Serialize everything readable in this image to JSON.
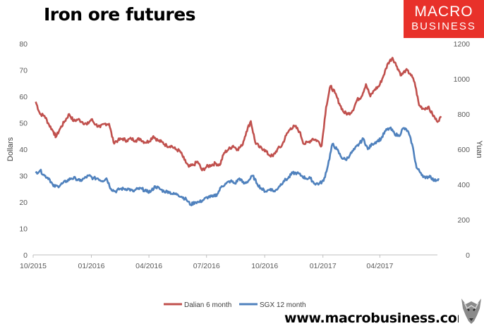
{
  "title": "Iron ore futures",
  "logo": {
    "line1": "MACRO",
    "line2": "BUSINESS"
  },
  "footer_url": "www.macrobusiness.com.au",
  "colors": {
    "dalian": "#c0504d",
    "sgx": "#4f81bd",
    "logo_bg": "#e8312a"
  },
  "chart_data": {
    "type": "line",
    "x_type": "date",
    "x_tick_labels": [
      "10/2015",
      "01/2016",
      "04/2016",
      "07/2016",
      "10/2016",
      "01/2017",
      "04/2017"
    ],
    "x_ticks": [
      "2015-10-01",
      "2016-01-01",
      "2016-04-01",
      "2016-07-01",
      "2016-10-01",
      "2017-01-01",
      "2017-04-01"
    ],
    "xlim": [
      "2015-10-01",
      "2017-07-01"
    ],
    "y_left": {
      "label": "Dollars",
      "ylim": [
        0,
        80
      ],
      "ticks": [
        0,
        10,
        20,
        30,
        40,
        50,
        60,
        70,
        80
      ]
    },
    "y_right": {
      "label": "Yuan",
      "ylim": [
        0,
        1200
      ],
      "ticks": [
        0,
        200,
        400,
        600,
        800,
        1000,
        1200
      ]
    },
    "grid": false,
    "legend": "bottom",
    "series": [
      {
        "name": "Dalian 6 month",
        "axis": "right",
        "color": "#c0504d",
        "points": [
          [
            "2015-10-05",
            870
          ],
          [
            "2015-10-12",
            800
          ],
          [
            "2015-10-19",
            790
          ],
          [
            "2015-10-26",
            740
          ],
          [
            "2015-11-02",
            700
          ],
          [
            "2015-11-06",
            670
          ],
          [
            "2015-11-13",
            720
          ],
          [
            "2015-11-20",
            760
          ],
          [
            "2015-11-27",
            800
          ],
          [
            "2015-12-04",
            760
          ],
          [
            "2015-12-11",
            770
          ],
          [
            "2015-12-18",
            755
          ],
          [
            "2015-12-25",
            740
          ],
          [
            "2016-01-01",
            770
          ],
          [
            "2016-01-08",
            740
          ],
          [
            "2016-01-15",
            725
          ],
          [
            "2016-01-22",
            745
          ],
          [
            "2016-01-29",
            745
          ],
          [
            "2016-02-05",
            640
          ],
          [
            "2016-02-12",
            650
          ],
          [
            "2016-02-19",
            660
          ],
          [
            "2016-02-26",
            650
          ],
          [
            "2016-03-04",
            660
          ],
          [
            "2016-03-11",
            650
          ],
          [
            "2016-03-18",
            660
          ],
          [
            "2016-03-25",
            640
          ],
          [
            "2016-04-01",
            645
          ],
          [
            "2016-04-08",
            675
          ],
          [
            "2016-04-15",
            650
          ],
          [
            "2016-04-22",
            640
          ],
          [
            "2016-04-29",
            620
          ],
          [
            "2016-05-06",
            620
          ],
          [
            "2016-05-13",
            600
          ],
          [
            "2016-05-20",
            590
          ],
          [
            "2016-05-27",
            540
          ],
          [
            "2016-06-03",
            500
          ],
          [
            "2016-06-10",
            510
          ],
          [
            "2016-06-17",
            530
          ],
          [
            "2016-06-24",
            480
          ],
          [
            "2016-07-01",
            500
          ],
          [
            "2016-07-08",
            510
          ],
          [
            "2016-07-15",
            520
          ],
          [
            "2016-07-22",
            510
          ],
          [
            "2016-07-29",
            580
          ],
          [
            "2016-08-05",
            600
          ],
          [
            "2016-08-12",
            620
          ],
          [
            "2016-08-19",
            600
          ],
          [
            "2016-08-26",
            620
          ],
          [
            "2016-09-02",
            700
          ],
          [
            "2016-09-09",
            760
          ],
          [
            "2016-09-16",
            640
          ],
          [
            "2016-09-23",
            610
          ],
          [
            "2016-09-30",
            600
          ],
          [
            "2016-10-07",
            570
          ],
          [
            "2016-10-14",
            560
          ],
          [
            "2016-10-21",
            600
          ],
          [
            "2016-10-28",
            620
          ],
          [
            "2016-11-04",
            680
          ],
          [
            "2016-11-11",
            720
          ],
          [
            "2016-11-18",
            730
          ],
          [
            "2016-11-25",
            700
          ],
          [
            "2016-12-02",
            630
          ],
          [
            "2016-12-09",
            640
          ],
          [
            "2016-12-16",
            660
          ],
          [
            "2016-12-23",
            650
          ],
          [
            "2016-12-30",
            620
          ],
          [
            "2017-01-06",
            840
          ],
          [
            "2017-01-13",
            960
          ],
          [
            "2017-01-20",
            920
          ],
          [
            "2017-01-27",
            860
          ],
          [
            "2017-02-03",
            810
          ],
          [
            "2017-02-10",
            800
          ],
          [
            "2017-02-17",
            820
          ],
          [
            "2017-02-24",
            880
          ],
          [
            "2017-03-03",
            900
          ],
          [
            "2017-03-10",
            970
          ],
          [
            "2017-03-17",
            900
          ],
          [
            "2017-03-24",
            940
          ],
          [
            "2017-03-31",
            960
          ],
          [
            "2017-04-07",
            1020
          ],
          [
            "2017-04-14",
            1090
          ],
          [
            "2017-04-21",
            1120
          ],
          [
            "2017-04-28",
            1070
          ],
          [
            "2017-05-05",
            1020
          ],
          [
            "2017-05-12",
            1050
          ],
          [
            "2017-05-19",
            1030
          ],
          [
            "2017-05-26",
            980
          ],
          [
            "2017-06-02",
            850
          ],
          [
            "2017-06-09",
            830
          ],
          [
            "2017-06-16",
            840
          ],
          [
            "2017-06-23",
            800
          ],
          [
            "2017-06-30",
            760
          ],
          [
            "2017-07-07",
            780
          ]
        ]
      },
      {
        "name": "SGX 12 month",
        "axis": "left",
        "color": "#4f81bd",
        "points": [
          [
            "2015-10-05",
            31
          ],
          [
            "2015-10-12",
            32
          ],
          [
            "2015-10-19",
            30
          ],
          [
            "2015-10-26",
            29
          ],
          [
            "2015-11-02",
            26
          ],
          [
            "2015-11-09",
            26
          ],
          [
            "2015-11-16",
            27
          ],
          [
            "2015-11-23",
            28
          ],
          [
            "2015-11-30",
            29
          ],
          [
            "2015-12-07",
            29
          ],
          [
            "2015-12-14",
            28
          ],
          [
            "2015-12-21",
            29
          ],
          [
            "2015-12-28",
            30
          ],
          [
            "2016-01-04",
            29
          ],
          [
            "2016-01-11",
            29
          ],
          [
            "2016-01-18",
            28
          ],
          [
            "2016-01-25",
            29
          ],
          [
            "2016-02-01",
            25
          ],
          [
            "2016-02-08",
            24
          ],
          [
            "2016-02-15",
            25
          ],
          [
            "2016-02-22",
            25
          ],
          [
            "2016-02-29",
            25
          ],
          [
            "2016-03-07",
            24
          ],
          [
            "2016-03-14",
            25
          ],
          [
            "2016-03-21",
            25
          ],
          [
            "2016-03-28",
            24
          ],
          [
            "2016-04-04",
            24
          ],
          [
            "2016-04-11",
            26
          ],
          [
            "2016-04-18",
            25
          ],
          [
            "2016-04-25",
            24
          ],
          [
            "2016-05-02",
            24
          ],
          [
            "2016-05-09",
            23
          ],
          [
            "2016-05-16",
            23
          ],
          [
            "2016-05-23",
            22
          ],
          [
            "2016-05-30",
            21
          ],
          [
            "2016-06-06",
            19
          ],
          [
            "2016-06-13",
            20
          ],
          [
            "2016-06-20",
            20
          ],
          [
            "2016-06-27",
            21
          ],
          [
            "2016-07-04",
            22
          ],
          [
            "2016-07-11",
            22
          ],
          [
            "2016-07-18",
            23
          ],
          [
            "2016-07-25",
            26
          ],
          [
            "2016-08-01",
            27
          ],
          [
            "2016-08-08",
            28
          ],
          [
            "2016-08-15",
            27
          ],
          [
            "2016-08-22",
            29
          ],
          [
            "2016-08-29",
            27
          ],
          [
            "2016-09-05",
            28
          ],
          [
            "2016-09-12",
            30
          ],
          [
            "2016-09-19",
            27
          ],
          [
            "2016-09-26",
            25
          ],
          [
            "2016-10-03",
            24
          ],
          [
            "2016-10-10",
            25
          ],
          [
            "2016-10-17",
            24
          ],
          [
            "2016-10-24",
            26
          ],
          [
            "2016-10-31",
            28
          ],
          [
            "2016-11-07",
            29
          ],
          [
            "2016-11-14",
            31
          ],
          [
            "2016-11-21",
            31
          ],
          [
            "2016-11-28",
            30
          ],
          [
            "2016-12-05",
            29
          ],
          [
            "2016-12-12",
            29
          ],
          [
            "2016-12-19",
            27
          ],
          [
            "2016-12-26",
            27
          ],
          [
            "2017-01-02",
            28
          ],
          [
            "2017-01-09",
            34
          ],
          [
            "2017-01-16",
            42
          ],
          [
            "2017-01-23",
            40
          ],
          [
            "2017-01-30",
            37
          ],
          [
            "2017-02-06",
            36
          ],
          [
            "2017-02-13",
            38
          ],
          [
            "2017-02-20",
            40
          ],
          [
            "2017-02-27",
            42
          ],
          [
            "2017-03-06",
            44
          ],
          [
            "2017-03-13",
            40
          ],
          [
            "2017-03-20",
            42
          ],
          [
            "2017-03-27",
            43
          ],
          [
            "2017-04-03",
            44
          ],
          [
            "2017-04-10",
            47
          ],
          [
            "2017-04-17",
            48
          ],
          [
            "2017-04-24",
            46
          ],
          [
            "2017-05-01",
            45
          ],
          [
            "2017-05-08",
            48
          ],
          [
            "2017-05-15",
            47
          ],
          [
            "2017-05-22",
            42
          ],
          [
            "2017-05-29",
            33
          ],
          [
            "2017-06-05",
            31
          ],
          [
            "2017-06-12",
            29
          ],
          [
            "2017-06-19",
            30
          ],
          [
            "2017-06-26",
            28
          ],
          [
            "2017-07-03",
            29
          ]
        ]
      }
    ]
  }
}
